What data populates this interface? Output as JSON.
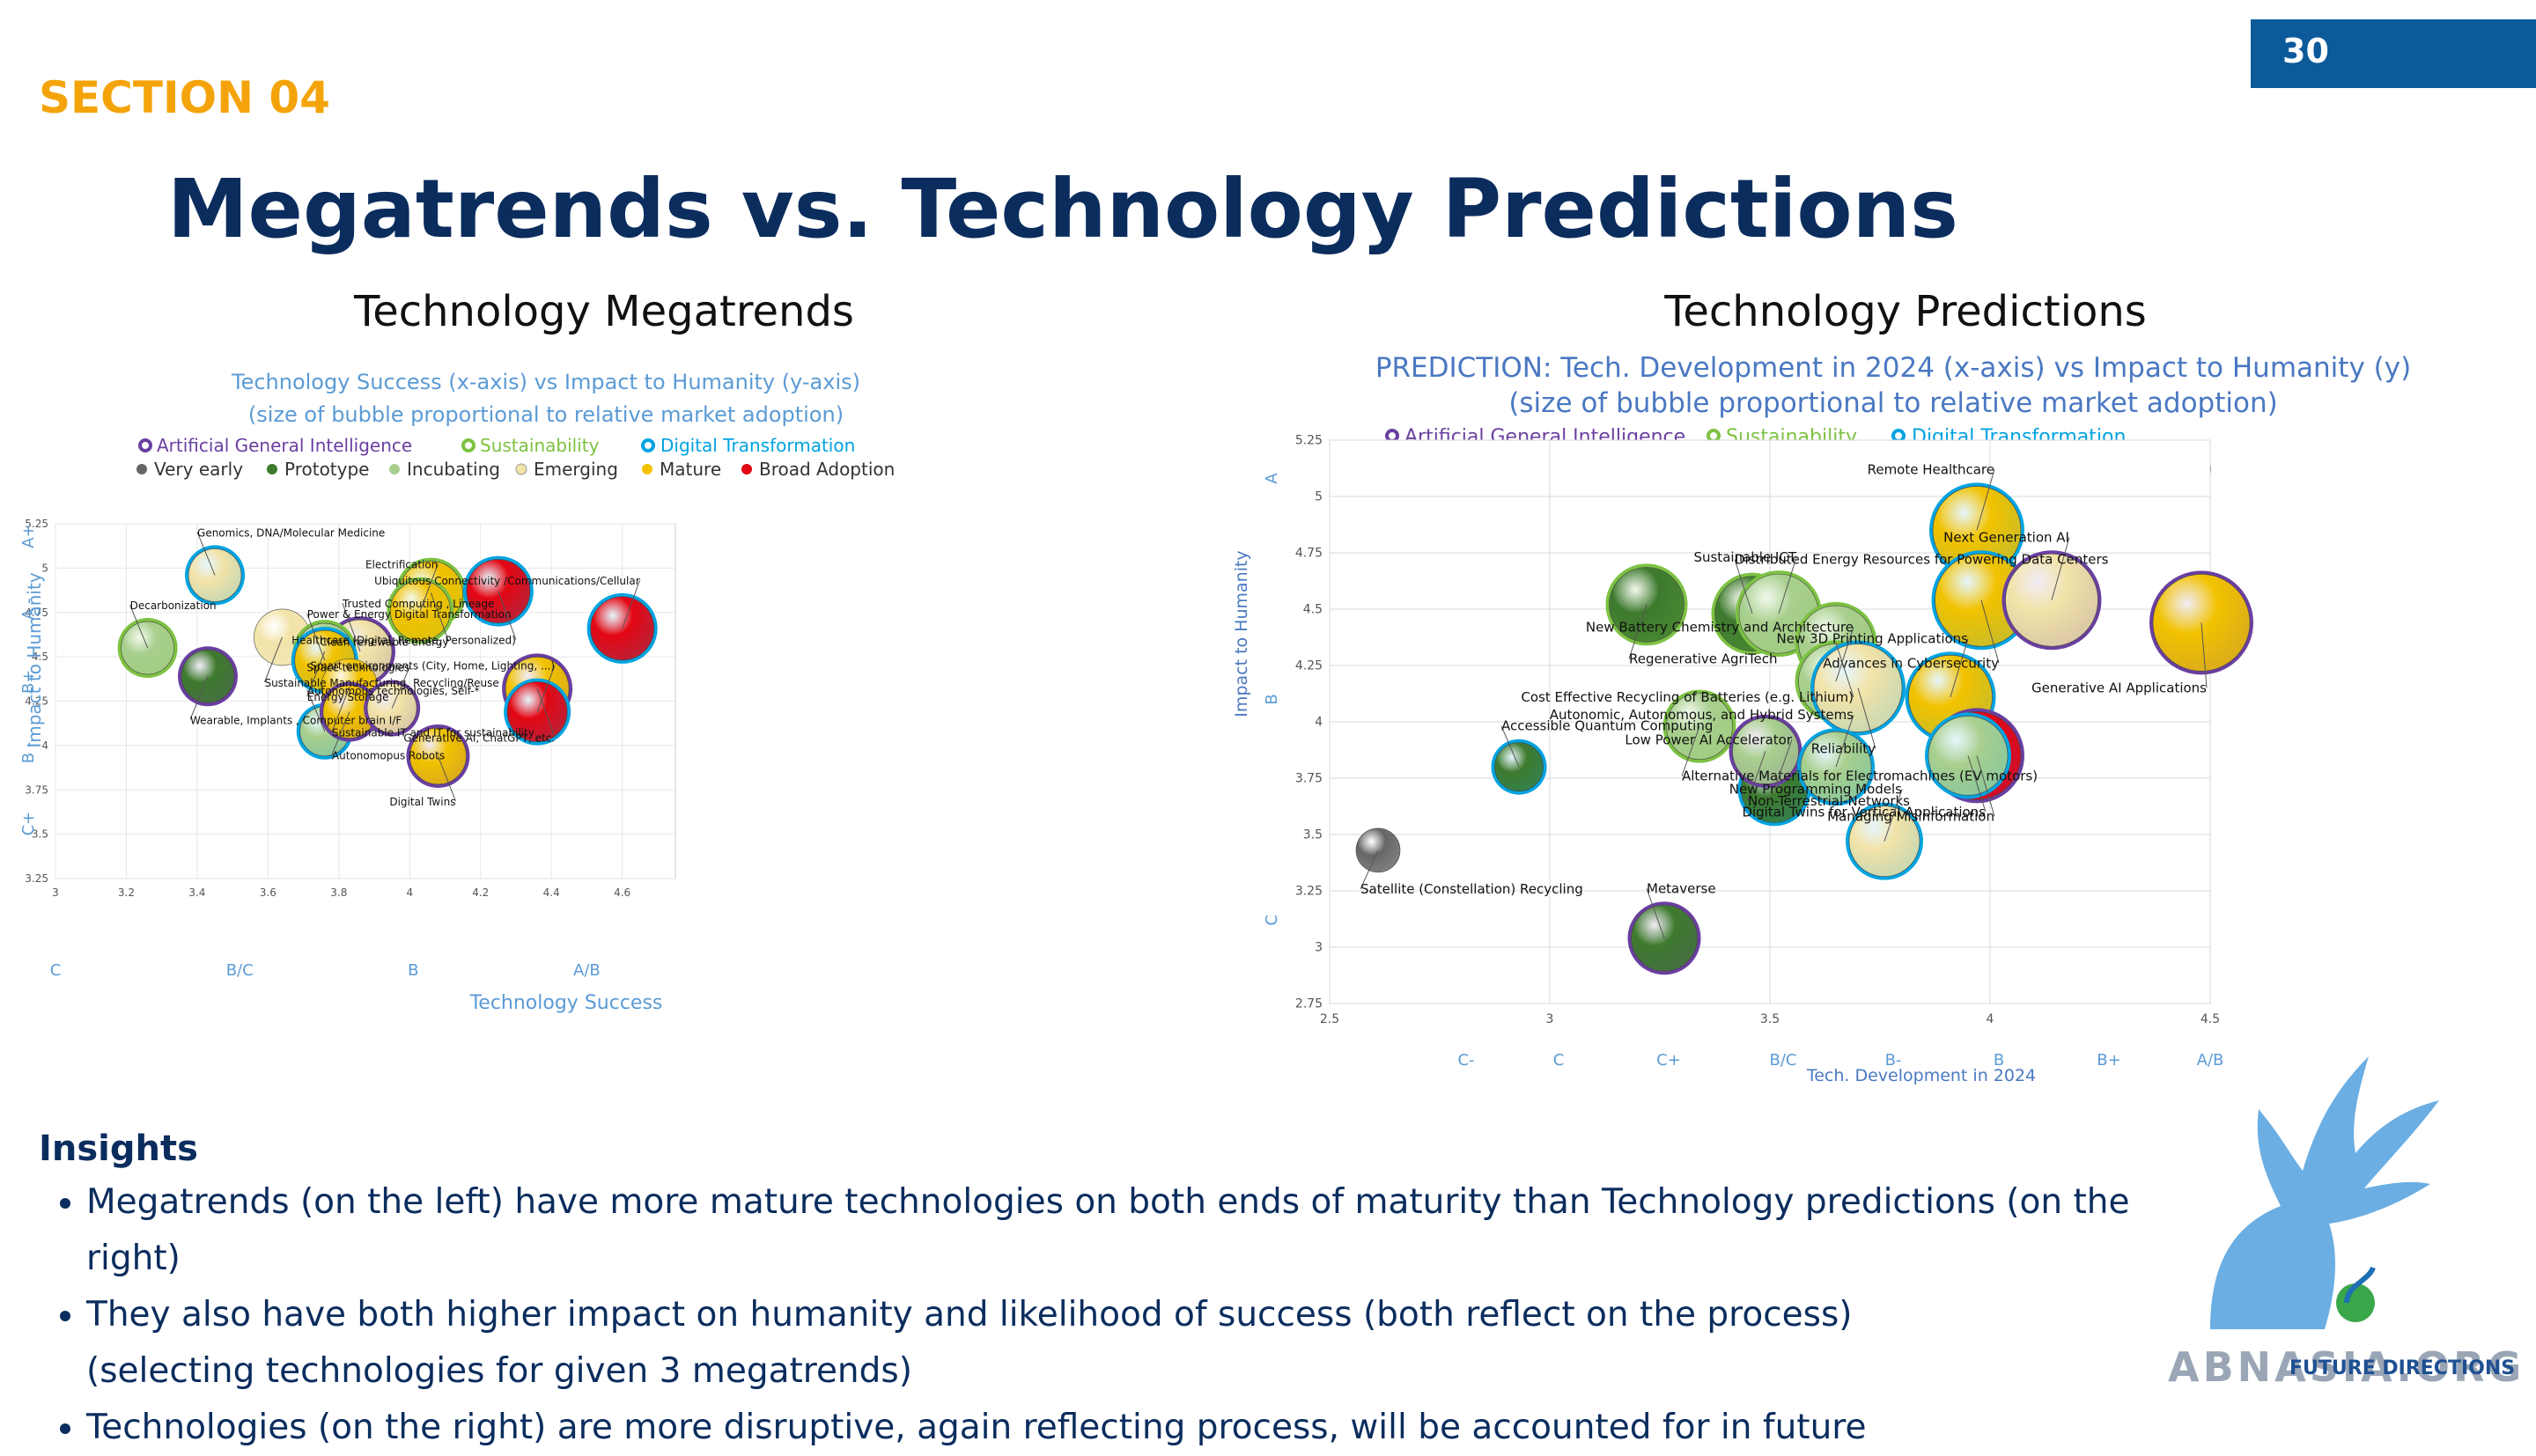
{
  "header": {
    "page_number": "30",
    "section": "SECTION 04",
    "title": "Megatrends vs. Technology Predictions"
  },
  "columns": {
    "left_heading": "Technology Megatrends",
    "right_heading": "Technology Predictions"
  },
  "legend": {
    "megatrends": [
      "Artificial General Intelligence",
      "Sustainability",
      "Digital Transformation"
    ],
    "maturity": [
      "Very early",
      "Prototype",
      "Incubating",
      "Emerging",
      "Mature",
      "Broad Adoption"
    ],
    "megatrend_colors": [
      "#6a3fa0",
      "#7dc242",
      "#00a3e0"
    ],
    "maturity_colors": [
      "#666666",
      "#3e7a2e",
      "#a8cf8e",
      "#f2e3a8",
      "#f2c200",
      "#e30613"
    ]
  },
  "chart_data": [
    {
      "type": "scatter",
      "title": "Technology Success (x-axis) vs Impact to Humanity (y-axis)",
      "subtitle": "(size of bubble proportional to relative market adoption)",
      "xlabel": "Technology Success",
      "ylabel": "Impact to Humanity",
      "xlim": [
        3,
        4.75
      ],
      "ylim": [
        3.25,
        5.25
      ],
      "xticks": [
        "3",
        "3.2",
        "3.4",
        "3.6",
        "3.8",
        "4",
        "4.2",
        "4.4",
        "4.6"
      ],
      "yticks": [
        "3.25",
        "3.5",
        "3.75",
        "4",
        "4.25",
        "4.5",
        "4.75",
        "5",
        "5.25"
      ],
      "grade_x": [
        {
          "label": "C",
          "x": 3
        },
        {
          "label": "B/C",
          "x": 3.52
        },
        {
          "label": "B",
          "x": 4.01
        },
        {
          "label": "A/B",
          "x": 4.5
        }
      ],
      "grade_y": [
        {
          "label": "A+",
          "y": 5.18
        },
        {
          "label": "A -",
          "y": 4.77
        },
        {
          "label": "B+",
          "y": 4.36
        },
        {
          "label": "B -",
          "y": 3.96
        },
        {
          "label": "C+",
          "y": 3.56
        }
      ],
      "grid": true,
      "points": [
        {
          "label": "Genomics, DNA/Molecular Medicine",
          "x": 3.45,
          "y": 4.96,
          "size": 15,
          "maturity": 3,
          "trend": 2
        },
        {
          "label": "Sustainable Manufacturing, Recycling/Reuse",
          "x": 3.64,
          "y": 4.61,
          "size": 16,
          "maturity": 3,
          "trend": -1
        },
        {
          "label": "Decarbonization",
          "x": 3.26,
          "y": 4.55,
          "size": 15,
          "maturity": 2,
          "trend": 1
        },
        {
          "label": "Wearable, Implants , Computer brain I/F",
          "x": 3.43,
          "y": 4.39,
          "size": 15,
          "maturity": 1,
          "trend": 0
        },
        {
          "label": "Trusted Computing , Lineage",
          "x": 3.86,
          "y": 4.53,
          "size": 18,
          "maturity": 3,
          "trend": 0
        },
        {
          "label": "Energy Storage",
          "x": 3.76,
          "y": 4.53,
          "size": 16,
          "maturity": 2,
          "trend": 1
        },
        {
          "label": "Power & Energy Digital Transformation",
          "x": 3.76,
          "y": 4.48,
          "size": 17,
          "maturity": 4,
          "trend": 2
        },
        {
          "label": "Sustainable IT and IT for sustainability",
          "x": 3.83,
          "y": 4.33,
          "size": 16,
          "maturity": 4,
          "trend": -1
        },
        {
          "label": "Autonomous technologies, Self-*",
          "x": 3.76,
          "y": 4.08,
          "size": 14,
          "maturity": 2,
          "trend": 2
        },
        {
          "label": "Autonomopus Robots",
          "x": 3.83,
          "y": 4.19,
          "size": 15,
          "maturity": 4,
          "trend": 0
        },
        {
          "label": "Space technologies",
          "x": 3.95,
          "y": 4.21,
          "size": 14,
          "maturity": 3,
          "trend": 0
        },
        {
          "label": "Clean renewable energy",
          "x": 4.06,
          "y": 4.86,
          "size": 18,
          "maturity": 4,
          "trend": 1
        },
        {
          "label": "Electrification",
          "x": 4.03,
          "y": 4.76,
          "size": 17,
          "maturity": 4,
          "trend": 1
        },
        {
          "label": "Healthcare (Digital, Remote, Personalized)",
          "x": 4.25,
          "y": 4.87,
          "size": 18,
          "maturity": 5,
          "trend": 2
        },
        {
          "label": "Ubiquitous Connectivity /Communications/Cellular",
          "x": 4.6,
          "y": 4.66,
          "size": 18,
          "maturity": 5,
          "trend": 2
        },
        {
          "label": "Generative AI, ChatGPT, etc.",
          "x": 4.36,
          "y": 4.32,
          "size": 18,
          "maturity": 4,
          "trend": 0
        },
        {
          "label": "Smart environments (City, Home, Lighting, ...)",
          "x": 4.36,
          "y": 4.19,
          "size": 17,
          "maturity": 5,
          "trend": 2
        },
        {
          "label": "Digital Twins",
          "x": 4.08,
          "y": 3.94,
          "size": 16,
          "maturity": 4,
          "trend": 0
        }
      ]
    },
    {
      "type": "scatter",
      "title": "PREDICTION: Tech. Development in 2024 (x-axis) vs Impact to Humanity (y)",
      "subtitle": "(size of bubble proportional to relative market adoption)",
      "xlabel": "Tech. Development in 2024",
      "ylabel": "Impact to Humanity",
      "xlim": [
        2.5,
        4.5
      ],
      "ylim": [
        2.75,
        5.25
      ],
      "xticks": [
        "2.5",
        "3",
        "3.5",
        "4",
        "4.5"
      ],
      "yticks": [
        "2.75",
        "3",
        "3.25",
        "3.5",
        "3.75",
        "4",
        "4.25",
        "4.5",
        "4.75",
        "5",
        "5.25"
      ],
      "grade_x": [
        {
          "label": "C-",
          "x": 2.81
        },
        {
          "label": "C",
          "x": 3.02
        },
        {
          "label": "C+",
          "x": 3.27
        },
        {
          "label": "B/C",
          "x": 3.53
        },
        {
          "label": "B-",
          "x": 3.78
        },
        {
          "label": "B",
          "x": 4.02
        },
        {
          "label": "B+",
          "x": 4.27
        },
        {
          "label": "A/B",
          "x": 4.5
        }
      ],
      "grade_y": [
        {
          "label": "A",
          "y": 5.08
        },
        {
          "label": "B",
          "y": 4.1
        },
        {
          "label": "C",
          "y": 3.12
        }
      ],
      "grid": true,
      "points": [
        {
          "label": "Remote Healthcare",
          "x": 3.97,
          "y": 4.85,
          "size": 20,
          "maturity": 4,
          "trend": 2
        },
        {
          "label": "Advances in Cybersecurity",
          "x": 3.98,
          "y": 4.54,
          "size": 21,
          "maturity": 4,
          "trend": 2
        },
        {
          "label": "Next Generation AI",
          "x": 4.14,
          "y": 4.54,
          "size": 21,
          "maturity": 3,
          "trend": 0
        },
        {
          "label": "Generative AI Applications",
          "x": 4.48,
          "y": 4.44,
          "size": 22,
          "maturity": 4,
          "trend": 0
        },
        {
          "label": "Distributed Energy Resources for Powering Data Centers",
          "x": 3.46,
          "y": 4.48,
          "size": 17,
          "maturity": 1,
          "trend": 1
        },
        {
          "label": "Regenerative AgriTech",
          "x": 3.22,
          "y": 4.52,
          "size": 17,
          "maturity": 1,
          "trend": 1
        },
        {
          "label": "Sustainable ICT",
          "x": 3.52,
          "y": 4.48,
          "size": 18,
          "maturity": 2,
          "trend": 1
        },
        {
          "label": "Cost Effective Recycling of Batteries (e.g. Lithium)",
          "x": 3.65,
          "y": 4.35,
          "size": 17,
          "maturity": 2,
          "trend": 1
        },
        {
          "label": "New Battery Chemistry and Architecture",
          "x": 3.65,
          "y": 4.18,
          "size": 17,
          "maturity": 2,
          "trend": 1
        },
        {
          "label": "Reliability",
          "x": 3.7,
          "y": 4.15,
          "size": 20,
          "maturity": 3,
          "trend": 2
        },
        {
          "label": "New 3D Printing Applications",
          "x": 3.91,
          "y": 4.11,
          "size": 19,
          "maturity": 4,
          "trend": 2
        },
        {
          "label": "Managing Misinformation",
          "x": 3.97,
          "y": 3.85,
          "size": 20,
          "maturity": 5,
          "trend": 0
        },
        {
          "label": "Accessible Quantum Computing",
          "x": 2.93,
          "y": 3.8,
          "size": 11,
          "maturity": 1,
          "trend": 2
        },
        {
          "label": "Alternative Materials for Electromachines (EV motors)",
          "x": 3.34,
          "y": 3.98,
          "size": 15,
          "maturity": 2,
          "trend": 1
        },
        {
          "label": "Low Power AI Accelerator",
          "x": 3.51,
          "y": 3.7,
          "size": 15,
          "maturity": 1,
          "trend": 2
        },
        {
          "label": "Non-Terrestrial-Networks",
          "x": 3.49,
          "y": 3.87,
          "size": 15,
          "maturity": 2,
          "trend": 0
        },
        {
          "label": "Autonomic, Autonomous, and Hybrid Systems",
          "x": 3.65,
          "y": 3.8,
          "size": 16,
          "maturity": 2,
          "trend": 2
        },
        {
          "label": "Digital Twins for Vertical Applications",
          "x": 3.95,
          "y": 3.85,
          "size": 18,
          "maturity": 2,
          "trend": 2
        },
        {
          "label": "New Programming Models",
          "x": 3.76,
          "y": 3.47,
          "size": 16,
          "maturity": 3,
          "trend": 2
        },
        {
          "label": "Satellite (Constellation) Recycling",
          "x": 2.61,
          "y": 3.43,
          "size": 10,
          "maturity": 0,
          "trend": -1
        },
        {
          "label": "Metaverse",
          "x": 3.26,
          "y": 3.04,
          "size": 15,
          "maturity": 1,
          "trend": 0
        }
      ]
    }
  ],
  "insights": {
    "heading": "Insights",
    "items": [
      "Megatrends (on the left) have more mature technologies on both ends of maturity than Technology predictions (on the right)",
      "They also have both higher impact on humanity and likelihood of success (both reflect on the process)",
      "Technologies (on the right) are more disruptive, again reflecting process, will be accounted for in future"
    ],
    "continuation": "(selecting technologies for given 3 megatrends)"
  },
  "branding": {
    "logo_text": "ABNASIA.ORG",
    "sub_logo": "FUTURE DIRECTIONS"
  }
}
